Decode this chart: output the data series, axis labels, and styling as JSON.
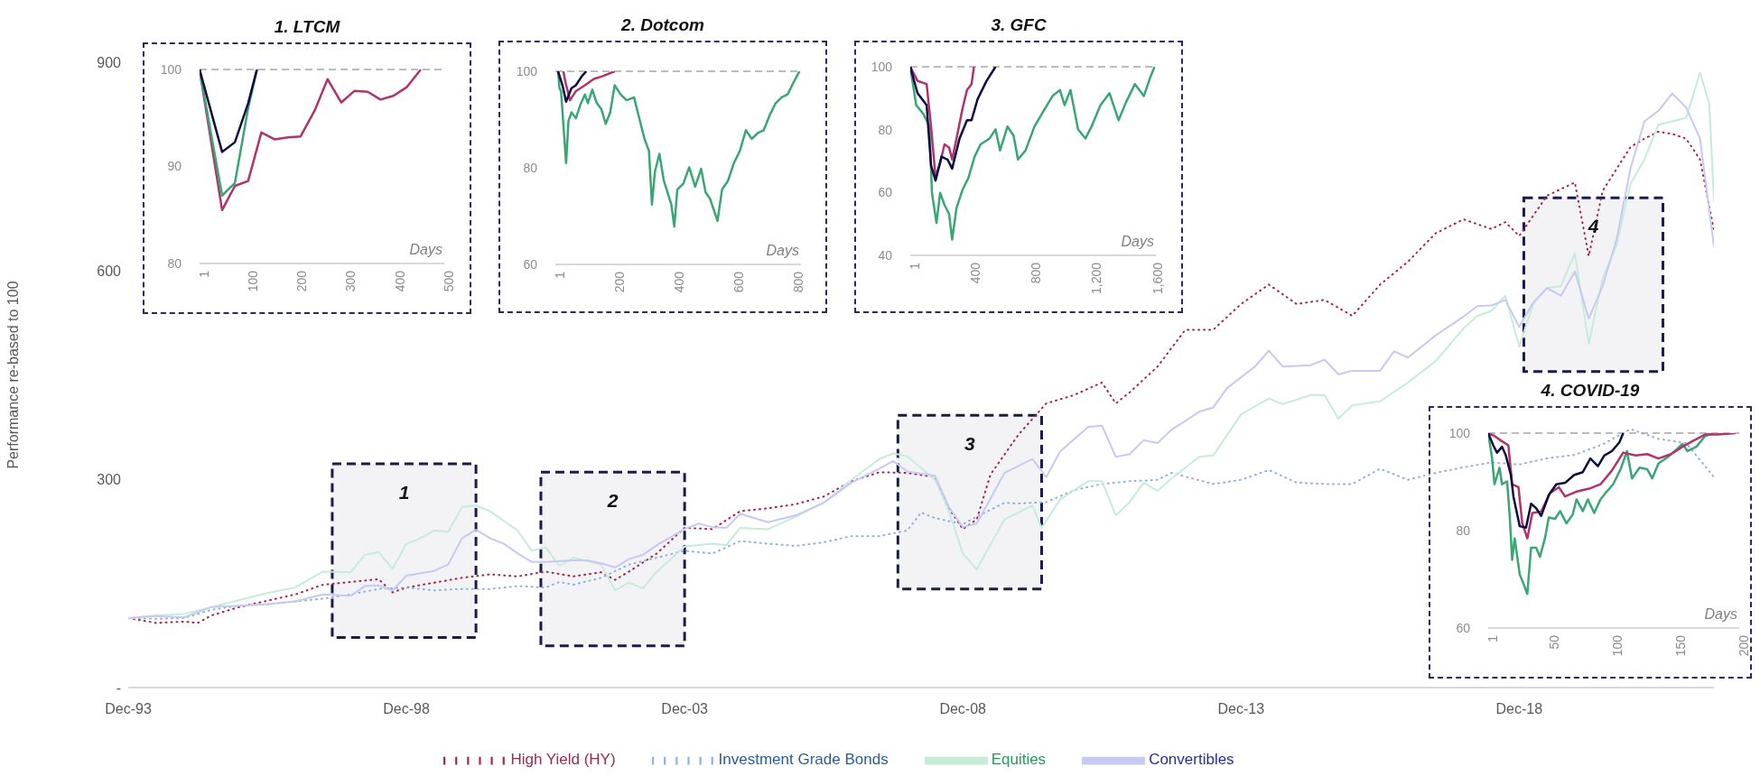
{
  "chart_data": [
    {
      "type": "line",
      "ylabel": "Performance re-based to 100",
      "legend": "bottom",
      "xlim": [
        "1993-12",
        "2022-06"
      ],
      "xticks": [
        {
          "value": "1993-12",
          "label": "Dec-93"
        },
        {
          "value": "1998-12",
          "label": "Dec-98"
        },
        {
          "value": "2003-12",
          "label": "Dec-03"
        },
        {
          "value": "2008-12",
          "label": "Dec-08"
        },
        {
          "value": "2013-12",
          "label": "Dec-13"
        },
        {
          "value": "2018-12",
          "label": "Dec-18"
        }
      ],
      "ylim": [
        0,
        900
      ],
      "yticks": [
        {
          "value": 0,
          "label": "-"
        },
        300,
        600,
        900
      ],
      "bands": [
        {
          "axis": "x",
          "from": "1997-08",
          "to": "2000-03",
          "label": "1",
          "color": "#1c1c4c"
        },
        {
          "axis": "x",
          "from": "2001-05",
          "to": "2003-12",
          "label": "2",
          "color": "#1c1c4c"
        },
        {
          "axis": "x",
          "from": "2007-10",
          "to": "2010-05",
          "label": "3",
          "color": "#1c1c4c"
        },
        {
          "axis": "x",
          "from": "2019-01",
          "to": "2021-07",
          "label": "4",
          "color": "#1c1c4c"
        }
      ],
      "series": [
        {
          "name": "High Yield (HY)",
          "color": "#a3264f",
          "line_style": "dotted",
          "x": [
            "1993-12",
            "1994-06",
            "1994-12",
            "1995-03",
            "1995-06",
            "1995-12",
            "1996-06",
            "1996-12",
            "1997-06",
            "1997-12",
            "1998-06",
            "1998-09",
            "1998-12",
            "1999-06",
            "1999-12",
            "2000-06",
            "2000-12",
            "2001-06",
            "2001-12",
            "2002-06",
            "2002-09",
            "2002-12",
            "2003-06",
            "2003-12",
            "2004-06",
            "2004-12",
            "2005-06",
            "2005-12",
            "2006-06",
            "2006-12",
            "2007-06",
            "2007-12",
            "2008-06",
            "2008-09",
            "2008-12",
            "2009-03",
            "2009-06",
            "2009-12",
            "2010-06",
            "2010-12",
            "2011-06",
            "2011-09",
            "2011-12",
            "2012-06",
            "2012-12",
            "2013-06",
            "2013-12",
            "2014-06",
            "2014-12",
            "2015-06",
            "2015-12",
            "2016-06",
            "2016-12",
            "2017-06",
            "2017-12",
            "2018-06",
            "2018-09",
            "2018-12",
            "2019-06",
            "2019-12",
            "2020-03",
            "2020-06",
            "2020-12",
            "2021-03",
            "2021-06",
            "2021-09",
            "2021-12",
            "2022-03",
            "2022-06"
          ],
          "values": [
            100,
            93,
            95,
            93,
            104,
            116,
            125,
            134,
            148,
            152,
            156,
            137,
            144,
            151,
            158,
            163,
            160,
            167,
            160,
            166,
            155,
            167,
            193,
            230,
            228,
            254,
            258,
            264,
            275,
            297,
            310,
            309,
            303,
            258,
            228,
            242,
            307,
            364,
            409,
            421,
            439,
            409,
            425,
            462,
            515,
            515,
            552,
            580,
            552,
            558,
            535,
            580,
            613,
            654,
            674,
            660,
            670,
            650,
            708,
            727,
            621,
            715,
            778,
            790,
            800,
            797,
            790,
            760,
            658
          ]
        },
        {
          "name": "Investment Grade Bonds",
          "color": "#8db0dc",
          "line_style": "dotted",
          "x": [
            "1993-12",
            "1994-06",
            "1994-12",
            "1995-06",
            "1995-12",
            "1996-06",
            "1996-12",
            "1997-06",
            "1997-12",
            "1998-06",
            "1998-12",
            "1999-06",
            "1999-12",
            "2000-06",
            "2000-12",
            "2001-06",
            "2001-09",
            "2001-12",
            "2002-06",
            "2002-12",
            "2003-06",
            "2003-12",
            "2004-06",
            "2004-12",
            "2005-06",
            "2005-12",
            "2006-06",
            "2006-12",
            "2007-06",
            "2007-12",
            "2008-03",
            "2008-06",
            "2008-12",
            "2009-03",
            "2009-09",
            "2009-12",
            "2010-06",
            "2010-12",
            "2011-06",
            "2011-12",
            "2012-06",
            "2012-09",
            "2013-06",
            "2013-12",
            "2014-06",
            "2014-12",
            "2015-06",
            "2015-12",
            "2016-06",
            "2016-12",
            "2017-06",
            "2017-12",
            "2018-06",
            "2018-12",
            "2019-06",
            "2019-12",
            "2020-06",
            "2020-12",
            "2021-06",
            "2021-12",
            "2022-06"
          ],
          "values": [
            100,
            99,
            100,
            112,
            118,
            120,
            124,
            128,
            134,
            142,
            144,
            140,
            142,
            142,
            146,
            144,
            152,
            148,
            158,
            177,
            187,
            197,
            193,
            211,
            207,
            204,
            209,
            218,
            218,
            226,
            252,
            244,
            235,
            246,
            266,
            265,
            267,
            284,
            293,
            297,
            299,
            309,
            293,
            299,
            313,
            295,
            293,
            293,
            315,
            299,
            309,
            317,
            324,
            321,
            330,
            335,
            350,
            372,
            358,
            352,
            303
          ]
        },
        {
          "name": "Equities",
          "color": "#c5ecd9",
          "line_style": "solid",
          "x": [
            "1993-12",
            "1994-06",
            "1994-12",
            "1995-06",
            "1995-12",
            "1996-06",
            "1996-12",
            "1997-06",
            "1997-12",
            "1998-03",
            "1998-06",
            "1998-09",
            "1998-12",
            "1999-03",
            "1999-06",
            "1999-09",
            "1999-12",
            "2000-03",
            "2000-06",
            "2000-12",
            "2001-03",
            "2001-06",
            "2001-09",
            "2001-12",
            "2002-06",
            "2002-09",
            "2002-12",
            "2003-03",
            "2003-06",
            "2003-12",
            "2004-06",
            "2004-09",
            "2004-12",
            "2005-06",
            "2005-12",
            "2006-06",
            "2006-12",
            "2007-06",
            "2007-09",
            "2007-12",
            "2008-06",
            "2008-09",
            "2008-12",
            "2009-03",
            "2009-09",
            "2010-03",
            "2010-05",
            "2010-09",
            "2011-03",
            "2011-06",
            "2011-09",
            "2011-12",
            "2012-03",
            "2012-06",
            "2012-09",
            "2013-03",
            "2013-06",
            "2013-12",
            "2014-06",
            "2014-09",
            "2015-03",
            "2015-06",
            "2015-09",
            "2015-12",
            "2016-06",
            "2016-12",
            "2017-06",
            "2017-12",
            "2018-03",
            "2018-06",
            "2018-09",
            "2018-12",
            "2019-03",
            "2019-06",
            "2019-09",
            "2019-12",
            "2020-03",
            "2020-06",
            "2020-09",
            "2020-12",
            "2021-03",
            "2021-06",
            "2021-09",
            "2021-12",
            "2022-03",
            "2022-05",
            "2022-06"
          ],
          "values": [
            100,
            104,
            106,
            116,
            126,
            136,
            144,
            167,
            166,
            191,
            195,
            171,
            207,
            215,
            226,
            224,
            260,
            262,
            254,
            226,
            197,
            202,
            175,
            187,
            177,
            140,
            151,
            143,
            167,
            203,
            207,
            205,
            230,
            228,
            246,
            266,
            299,
            329,
            337,
            333,
            299,
            254,
            193,
            170,
            242,
            262,
            230,
            271,
            297,
            297,
            248,
            267,
            295,
            283,
            301,
            332,
            334,
            393,
            416,
            408,
            421,
            421,
            387,
            406,
            412,
            439,
            470,
            517,
            535,
            542,
            564,
            491,
            552,
            575,
            578,
            625,
            495,
            589,
            637,
            725,
            760,
            810,
            815,
            820,
            885,
            840,
            700
          ]
        },
        {
          "name": "Convertibles",
          "color": "#c8c8f4",
          "line_style": "solid",
          "x": [
            "1993-12",
            "1994-06",
            "1994-12",
            "1995-06",
            "1995-12",
            "1996-06",
            "1996-12",
            "1997-06",
            "1997-12",
            "1998-03",
            "1998-06",
            "1998-09",
            "1998-12",
            "1999-06",
            "1999-09",
            "1999-12",
            "2000-03",
            "2000-06",
            "2000-09",
            "2000-12",
            "2001-03",
            "2001-06",
            "2001-12",
            "2002-03",
            "2002-06",
            "2002-09",
            "2002-12",
            "2003-03",
            "2003-06",
            "2003-12",
            "2004-03",
            "2004-06",
            "2004-09",
            "2004-12",
            "2005-06",
            "2005-12",
            "2006-06",
            "2006-12",
            "2007-06",
            "2007-09",
            "2007-12",
            "2008-06",
            "2008-09",
            "2008-12",
            "2009-03",
            "2009-09",
            "2010-03",
            "2010-06",
            "2010-09",
            "2011-03",
            "2011-06",
            "2011-09",
            "2011-12",
            "2012-03",
            "2012-06",
            "2012-09",
            "2013-03",
            "2013-06",
            "2013-09",
            "2014-03",
            "2014-06",
            "2014-09",
            "2015-03",
            "2015-06",
            "2015-09",
            "2015-12",
            "2016-06",
            "2016-09",
            "2016-12",
            "2017-06",
            "2017-12",
            "2018-03",
            "2018-06",
            "2018-09",
            "2018-12",
            "2019-03",
            "2019-06",
            "2019-09",
            "2019-12",
            "2020-03",
            "2020-06",
            "2020-09",
            "2020-12",
            "2021-03",
            "2021-06",
            "2021-09",
            "2021-12",
            "2022-03",
            "2022-06"
          ],
          "values": [
            100,
            103,
            101,
            116,
            118,
            120,
            124,
            134,
            132,
            146,
            147,
            140,
            161,
            168,
            177,
            215,
            227,
            215,
            207,
            193,
            181,
            181,
            183,
            183,
            179,
            173,
            185,
            191,
            205,
            228,
            236,
            231,
            230,
            250,
            238,
            248,
            266,
            295,
            315,
            326,
            311,
            305,
            260,
            231,
            236,
            309,
            329,
            303,
            340,
            375,
            377,
            332,
            336,
            356,
            352,
            371,
            397,
            403,
            431,
            462,
            485,
            462,
            464,
            472,
            451,
            456,
            456,
            484,
            475,
            507,
            534,
            549,
            550,
            558,
            519,
            554,
            575,
            564,
            599,
            531,
            578,
            645,
            747,
            815,
            830,
            855,
            835,
            790,
            635
          ]
        }
      ]
    },
    {
      "type": "line",
      "title": "1. LTCM",
      "xlabel": "Days",
      "xlim": [
        1,
        500
      ],
      "xticks": [
        1,
        100,
        200,
        300,
        400,
        500
      ],
      "ylim": [
        80,
        100
      ],
      "yticks": [
        80,
        90,
        100
      ],
      "ref_lines": [
        {
          "axis": "y",
          "value": 100,
          "color": "#a6a6a6",
          "line_style": "dashed"
        }
      ],
      "series": [
        {
          "color": "#b0336b",
          "x": [
            1,
            47,
            73,
            100,
            127,
            154,
            181,
            207,
            236,
            262,
            290,
            317,
            344,
            370,
            397,
            424,
            452
          ],
          "values": [
            100,
            85.5,
            88,
            88.5,
            93.5,
            92.8,
            93,
            93.1,
            95.8,
            99,
            96.6,
            97.8,
            97.7,
            96.9,
            97.3,
            98.2,
            100
          ]
        },
        {
          "color": "#3aa676",
          "x": [
            1,
            47,
            73,
            100,
            118
          ],
          "values": [
            100,
            87,
            88.3,
            96,
            100
          ]
        },
        {
          "color": "#0c0c40",
          "x": [
            1,
            47,
            73,
            100,
            118
          ],
          "values": [
            100,
            91.5,
            92.5,
            96.5,
            100
          ]
        }
      ]
    },
    {
      "type": "line",
      "title": "2. Dotcom",
      "xlabel": "Days",
      "xlim": [
        1,
        825
      ],
      "xticks": [
        1,
        200,
        400,
        600,
        800
      ],
      "ylim": [
        60,
        100
      ],
      "yticks": [
        60,
        80,
        100
      ],
      "ref_lines": [
        {
          "axis": "y",
          "value": 100,
          "color": "#a6a6a6",
          "line_style": "dashed"
        }
      ],
      "series": [
        {
          "color": "#3aa676",
          "x": [
            10,
            15,
            20,
            37,
            45,
            55,
            70,
            85,
            100,
            110,
            125,
            140,
            155,
            170,
            185,
            200,
            220,
            240,
            265,
            280,
            300,
            315,
            325,
            335,
            350,
            365,
            390,
            400,
            410,
            430,
            450,
            470,
            490,
            505,
            520,
            545,
            560,
            580,
            600,
            620,
            640,
            660,
            680,
            700,
            720,
            740,
            760,
            780,
            800,
            820
          ],
          "values": [
            100,
            96.5,
            95.9,
            81,
            89.7,
            91.5,
            90.3,
            93.1,
            95.2,
            93.4,
            96.2,
            93.4,
            92.2,
            89.1,
            91.5,
            97.1,
            95.2,
            94,
            94.6,
            90.9,
            86,
            83.5,
            72.4,
            79.2,
            82.9,
            77.3,
            72.4,
            67.8,
            75.5,
            76.7,
            80.1,
            76.1,
            79.8,
            74.9,
            73.6,
            69,
            75.5,
            77.3,
            81,
            83.5,
            87.8,
            86,
            87.2,
            87.8,
            90.9,
            93.4,
            94.6,
            95.2,
            97.7,
            100
          ]
        },
        {
          "color": "#b0336b",
          "x": [
            28,
            35,
            50,
            70,
            100,
            130,
            160,
            200
          ],
          "values": [
            100,
            97.7,
            94,
            95.9,
            97.1,
            98.4,
            99,
            100
          ]
        },
        {
          "color": "#0c0c40",
          "x": [
            10,
            25,
            37,
            55,
            70,
            90,
            105
          ],
          "values": [
            100,
            97.1,
            93.7,
            96.5,
            97.1,
            99,
            100
          ]
        }
      ]
    },
    {
      "type": "line",
      "title": "3. GFC",
      "xlabel": "Days",
      "xlim": [
        1,
        1620
      ],
      "xticks": [
        1,
        400,
        800,
        {
          "value": 1200,
          "label": "1,200"
        },
        {
          "value": 1600,
          "label": "1,600"
        }
      ],
      "ylim": [
        40,
        100
      ],
      "yticks": [
        40,
        60,
        80,
        100
      ],
      "ref_lines": [
        {
          "axis": "y",
          "value": 100,
          "color": "#a6a6a6",
          "line_style": "dashed"
        }
      ],
      "series": [
        {
          "color": "#3aa676",
          "x": [
            1,
            40,
            89,
            128,
            144,
            174,
            198,
            227,
            257,
            277,
            306,
            346,
            385,
            425,
            464,
            524,
            563,
            593,
            642,
            682,
            711,
            761,
            820,
            879,
            939,
            988,
            1018,
            1057,
            1107,
            1156,
            1196,
            1255,
            1314,
            1374,
            1423,
            1482,
            1541,
            1581,
            1611
          ],
          "values": [
            100,
            87.8,
            84.9,
            81,
            59.9,
            50.3,
            59.9,
            56,
            53.2,
            45,
            55.1,
            60.9,
            64.7,
            71.4,
            75.3,
            77.2,
            80.1,
            73.4,
            81,
            78.1,
            70.5,
            73.4,
            81,
            85.9,
            90.7,
            92.6,
            87.8,
            92.6,
            80.1,
            77.2,
            81,
            87.8,
            91.6,
            83,
            88.7,
            94.5,
            90.7,
            96.4,
            100
          ]
        },
        {
          "color": "#b0336b",
          "x": [
            1,
            49,
            109,
            138,
            168,
            198,
            227,
            257,
            277,
            306,
            346,
            375,
            405,
            421
          ],
          "values": [
            100,
            95.5,
            94.5,
            81,
            64.7,
            69.5,
            75.3,
            74.3,
            70.5,
            77.2,
            86.8,
            92.6,
            94.5,
            100
          ]
        },
        {
          "color": "#0c0c40",
          "x": [
            1,
            49,
            109,
            138,
            168,
            207,
            247,
            277,
            326,
            375,
            405,
            445,
            504,
            563
          ],
          "values": [
            100,
            91.6,
            87.8,
            68.6,
            63.8,
            71.4,
            70.5,
            67.6,
            77.2,
            83,
            83,
            89.7,
            95.5,
            100
          ]
        }
      ]
    },
    {
      "type": "line",
      "title": "4. COVID-19",
      "xlabel": "Days",
      "xlim": [
        1,
        200
      ],
      "xticks": [
        1,
        50,
        100,
        150,
        200
      ],
      "ylim": [
        60,
        100
      ],
      "yticks": [
        60,
        80,
        100
      ],
      "ref_lines": [
        {
          "axis": "y",
          "value": 100,
          "color": "#a6a6a6",
          "line_style": "dashed"
        }
      ],
      "series": [
        {
          "color": "#3aa676",
          "x": [
            1,
            4,
            6,
            10,
            12,
            16,
            18,
            20,
            22,
            26,
            29,
            32,
            35,
            39,
            42,
            46,
            49,
            54,
            58,
            63,
            68,
            71,
            76,
            80,
            85,
            90,
            94,
            100,
            106,
            111,
            115,
            121,
            127,
            131,
            136,
            143,
            150,
            155,
            159,
            166,
            173,
            179
          ],
          "values": [
            100,
            95,
            89.5,
            92.9,
            89.5,
            90.1,
            83.3,
            74,
            78.4,
            71,
            69.1,
            67,
            76.5,
            76.5,
            74.6,
            78.4,
            82.7,
            82.4,
            84,
            81.5,
            83.3,
            86.4,
            84,
            86.4,
            83.6,
            86.4,
            87.7,
            89.5,
            92.6,
            96.3,
            90.7,
            92.9,
            92.6,
            90.7,
            93.8,
            95,
            96.6,
            97.8,
            96.3,
            97.2,
            99.4,
            100
          ]
        },
        {
          "color": "#b0336b",
          "x": [
            1,
            6,
            11,
            17,
            20,
            25,
            28,
            32,
            36,
            43,
            50,
            57,
            62,
            71,
            81,
            90,
            99,
            108,
            118,
            127,
            136,
            146,
            155,
            164,
            173,
            183,
            197
          ],
          "values": [
            100,
            99.4,
            98.5,
            97.5,
            89.5,
            88.9,
            81.5,
            78.4,
            83.6,
            83.9,
            87.7,
            88.9,
            87,
            88,
            88.6,
            89.5,
            92.3,
            96,
            95.4,
            95.7,
            94.8,
            95.7,
            97.2,
            98.5,
            99.7,
            99.7,
            100
          ]
        },
        {
          "color": "#0c0c40",
          "x": [
            1,
            5,
            8,
            12,
            15,
            19,
            21,
            26,
            31,
            35,
            39,
            43,
            49,
            55,
            62,
            69,
            76,
            82,
            88,
            93,
            99,
            105,
            108
          ],
          "values": [
            100,
            97.5,
            96,
            97.2,
            95.4,
            91.4,
            87,
            80.9,
            80.6,
            85.5,
            84.6,
            83,
            87.3,
            89.5,
            89.8,
            91.4,
            92,
            94.8,
            93.2,
            95.4,
            96.3,
            98.1,
            100
          ]
        }
      ]
    }
  ]
}
